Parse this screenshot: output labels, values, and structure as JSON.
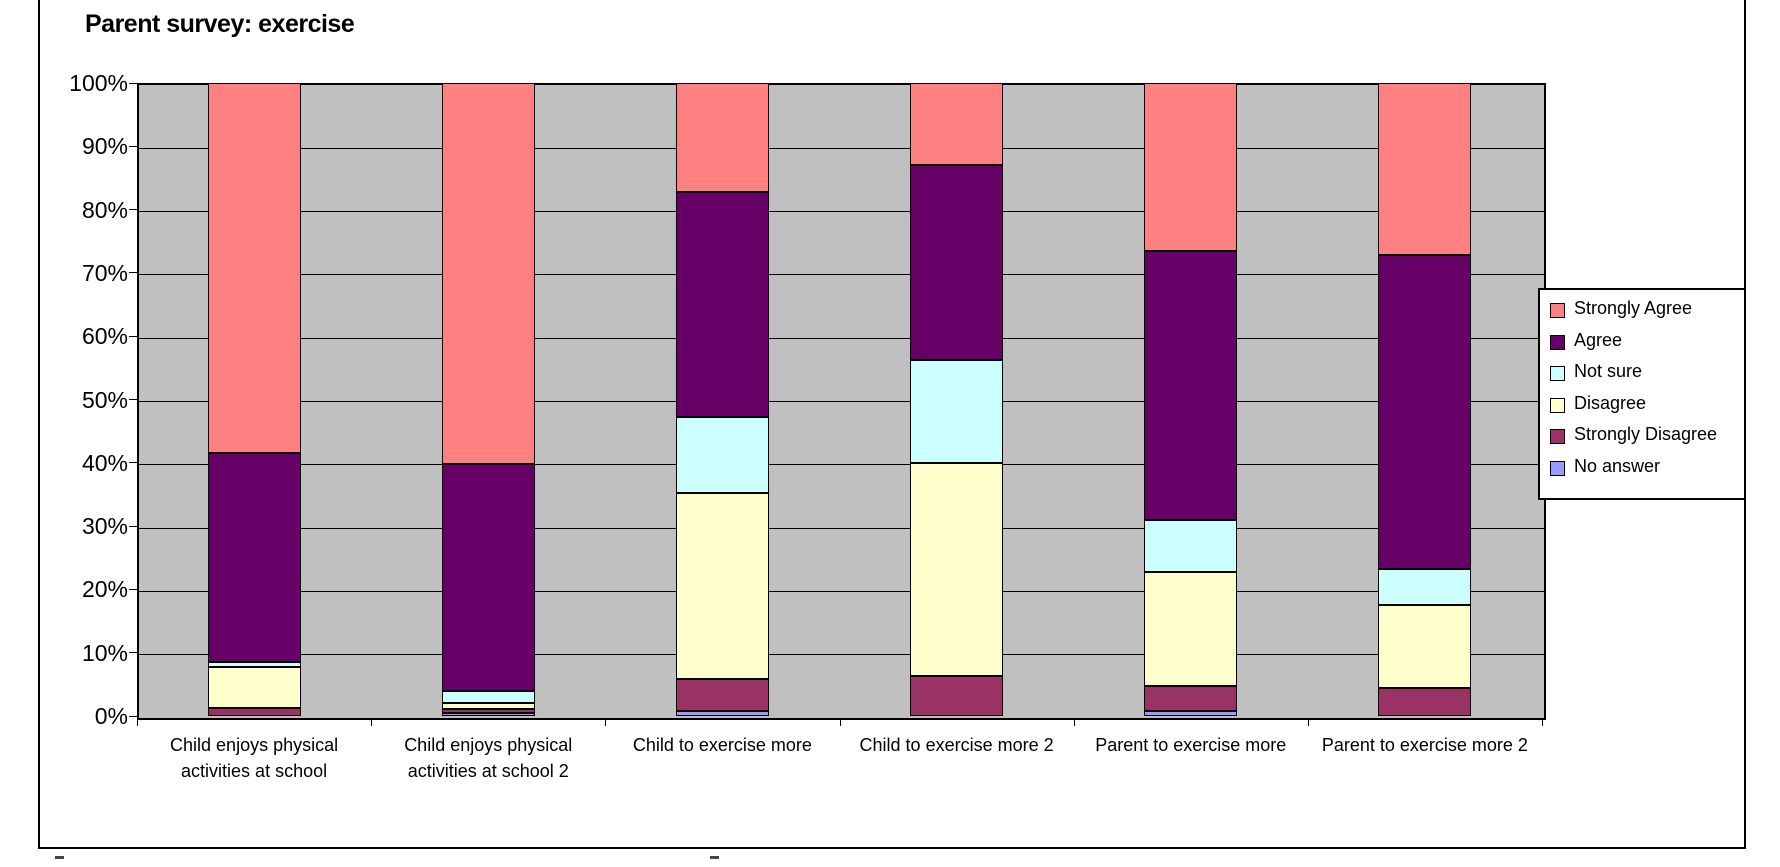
{
  "title": "Parent survey: exercise",
  "chart_data": {
    "type": "bar",
    "subtype": "stacked-100-percent-column",
    "title": "Parent survey: exercise",
    "xlabel": "",
    "ylabel": "",
    "ylim": [
      0,
      100
    ],
    "grid": true,
    "plot_background": "#C0C0C0",
    "legend_position": "right",
    "y_tick_labels": [
      "0%",
      "10%",
      "20%",
      "30%",
      "40%",
      "50%",
      "60%",
      "70%",
      "80%",
      "90%",
      "100%"
    ],
    "categories": [
      "Child enjoys physical activities at school",
      "Child enjoys physical activities at school 2",
      "Child to exercise more",
      "Child to exercise more 2",
      "Parent to exercise more",
      "Parent to exercise more 2"
    ],
    "stack_order_bottom_to_top": [
      "No answer",
      "Strongly Disagree",
      "Disagree",
      "Not sure",
      "Agree",
      "Strongly Agree"
    ],
    "series": [
      {
        "name": "Strongly Agree",
        "color": "#FF8080",
        "values": [
          58.5,
          60.2,
          17.2,
          13.0,
          26.5,
          27.2
        ]
      },
      {
        "name": "Agree",
        "color": "#660066",
        "values": [
          33.0,
          35.8,
          35.5,
          30.7,
          42.5,
          49.6
        ]
      },
      {
        "name": "Not sure",
        "color": "#CCFFFF",
        "values": [
          0.7,
          2.0,
          12.0,
          16.3,
          8.3,
          5.7
        ]
      },
      {
        "name": "Disagree",
        "color": "#FFFFCC",
        "values": [
          6.5,
          0.9,
          29.4,
          33.7,
          18.0,
          13.0
        ]
      },
      {
        "name": "Strongly Disagree",
        "color": "#993366",
        "values": [
          1.3,
          0.6,
          5.1,
          6.3,
          3.9,
          4.5
        ]
      },
      {
        "name": "No answer",
        "color": "#9999FF",
        "values": [
          0.0,
          0.5,
          0.8,
          0.0,
          0.8,
          0.0
        ]
      }
    ]
  }
}
